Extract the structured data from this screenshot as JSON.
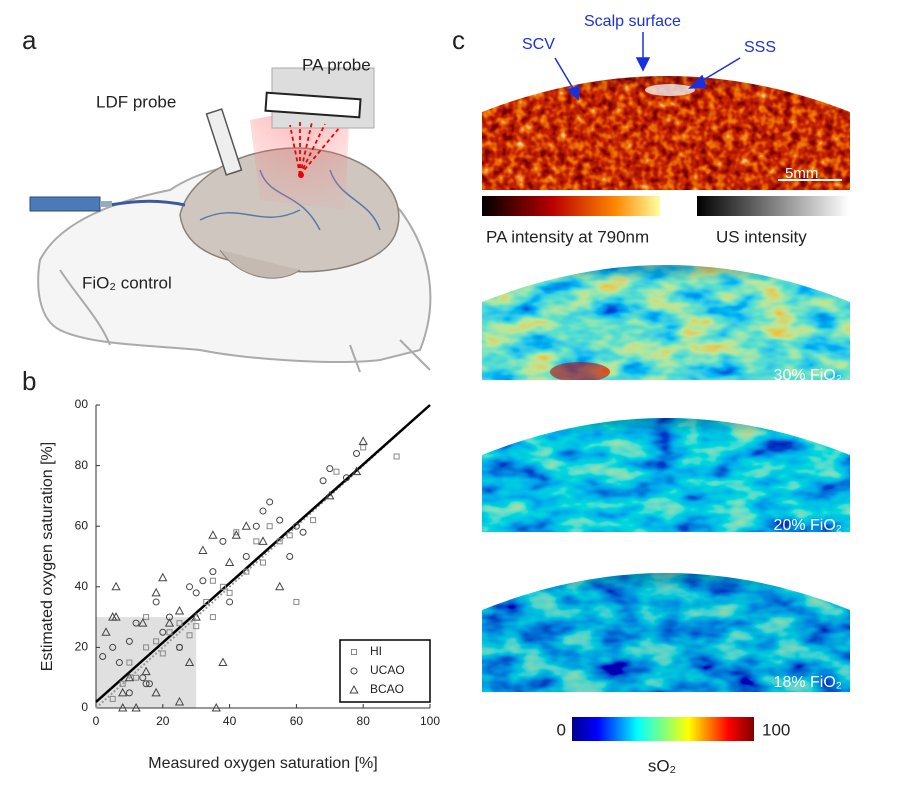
{
  "panel_labels": [
    "a",
    "b",
    "c"
  ],
  "illustration": {
    "pa_probe": "PA probe",
    "ldf_probe": "LDF probe",
    "fio2_control": "FiO₂ control"
  },
  "images": {
    "annotations": {
      "scalp_surface": "Scalp surface",
      "scv": "SCV",
      "sss": "SSS"
    },
    "scale_bar": "5mm",
    "pa_colorbar": "PA intensity at 790nm",
    "us_colorbar": "US intensity",
    "conditions": [
      "30% FiO₂",
      "20% FiO₂",
      "18% FiO₂"
    ],
    "so2_colorbar": {
      "min": 0,
      "max": 100,
      "label": "sO₂"
    }
  },
  "chart_data": {
    "type": "scatter",
    "xlabel": "Measured oxygen saturation [%]",
    "ylabel": "Estimated oxygen saturation [%]",
    "xlim": [
      0,
      100
    ],
    "ylim": [
      0,
      100
    ],
    "xticks": [
      0,
      20,
      40,
      60,
      80,
      100
    ],
    "yticks": [
      0,
      20,
      40,
      60,
      80,
      {
        "value": 100,
        "label": "00"
      }
    ],
    "highlight": {
      "xlim": [
        0,
        30
      ],
      "ylim": [
        0,
        30
      ]
    },
    "fit_line": {
      "x": [
        0,
        100
      ],
      "y": [
        2,
        100
      ]
    },
    "identity_line": {
      "x": [
        0,
        100
      ],
      "y": [
        0,
        100
      ]
    },
    "legend": "lower right",
    "series": [
      {
        "name": "HI",
        "marker": "square",
        "color": "#888888",
        "x": [
          5,
          8,
          10,
          12,
          15,
          18,
          20,
          22,
          25,
          28,
          30,
          33,
          35,
          38,
          40,
          42,
          45,
          48,
          52,
          55,
          58,
          60,
          65,
          72,
          80,
          90,
          15,
          25,
          35,
          50
        ],
        "y": [
          3,
          8,
          15,
          10,
          20,
          22,
          18,
          25,
          28,
          24,
          27,
          35,
          30,
          40,
          38,
          58,
          45,
          55,
          60,
          55,
          57,
          35,
          62,
          78,
          86,
          83,
          30,
          20,
          42,
          48
        ]
      },
      {
        "name": "UCAO",
        "marker": "circle",
        "color": "#444444",
        "x": [
          2,
          5,
          7,
          10,
          12,
          14,
          16,
          18,
          20,
          22,
          25,
          28,
          30,
          32,
          35,
          38,
          40,
          45,
          48,
          50,
          52,
          55,
          58,
          60,
          62,
          68,
          70,
          75,
          78,
          10,
          15
        ],
        "y": [
          17,
          20,
          15,
          22,
          28,
          10,
          8,
          35,
          25,
          30,
          20,
          40,
          38,
          42,
          45,
          55,
          35,
          50,
          60,
          65,
          68,
          62,
          50,
          60,
          58,
          75,
          79,
          76,
          84,
          5,
          8
        ]
      },
      {
        "name": "BCAO",
        "marker": "triangle",
        "color": "#444444",
        "x": [
          3,
          5,
          6,
          8,
          10,
          12,
          14,
          15,
          18,
          20,
          22,
          25,
          28,
          30,
          32,
          35,
          36,
          38,
          40,
          42,
          45,
          50,
          55,
          70,
          78,
          80,
          8,
          18,
          25,
          6
        ],
        "y": [
          25,
          30,
          40,
          5,
          10,
          0,
          28,
          12,
          38,
          43,
          28,
          32,
          15,
          30,
          52,
          57,
          0,
          15,
          48,
          57,
          60,
          55,
          40,
          70,
          78,
          88,
          0,
          5,
          2,
          30
        ]
      }
    ]
  }
}
